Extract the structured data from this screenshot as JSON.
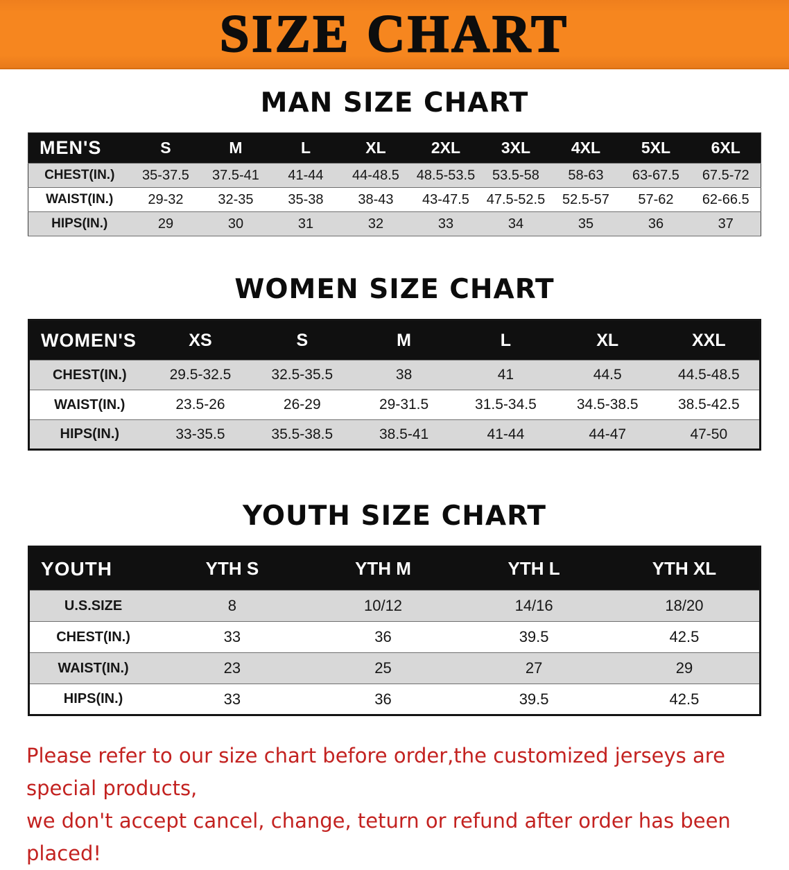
{
  "banner": {
    "title": "SIZE CHART"
  },
  "colors": {
    "banner_bg": "#f6861f",
    "table_header_bg": "#101010",
    "row_alt_bg": "#d8d8d8",
    "disclaimer_red": "#c32220"
  },
  "sections": [
    {
      "id": "men",
      "heading": "MAN SIZE CHART",
      "table": {
        "header": [
          "MEN'S",
          "S",
          "M",
          "L",
          "XL",
          "2XL",
          "3XL",
          "4XL",
          "5XL",
          "6XL"
        ],
        "rows": [
          [
            "CHEST(IN.)",
            "35-37.5",
            "37.5-41",
            "41-44",
            "44-48.5",
            "48.5-53.5",
            "53.5-58",
            "58-63",
            "63-67.5",
            "67.5-72"
          ],
          [
            "WAIST(IN.)",
            "29-32",
            "32-35",
            "35-38",
            "38-43",
            "43-47.5",
            "47.5-52.5",
            "52.5-57",
            "57-62",
            "62-66.5"
          ],
          [
            "HIPS(IN.)",
            "29",
            "30",
            "31",
            "32",
            "33",
            "34",
            "35",
            "36",
            "37"
          ]
        ]
      }
    },
    {
      "id": "women",
      "heading": "WOMEN SIZE CHART",
      "table": {
        "header": [
          "WOMEN'S",
          "XS",
          "S",
          "M",
          "L",
          "XL",
          "XXL"
        ],
        "rows": [
          [
            "CHEST(IN.)",
            "29.5-32.5",
            "32.5-35.5",
            "38",
            "41",
            "44.5",
            "44.5-48.5"
          ],
          [
            "WAIST(IN.)",
            "23.5-26",
            "26-29",
            "29-31.5",
            "31.5-34.5",
            "34.5-38.5",
            "38.5-42.5"
          ],
          [
            "HIPS(IN.)",
            "33-35.5",
            "35.5-38.5",
            "38.5-41",
            "41-44",
            "44-47",
            "47-50"
          ]
        ]
      }
    },
    {
      "id": "youth",
      "heading": "YOUTH SIZE CHART",
      "table": {
        "header": [
          "YOUTH",
          "YTH S",
          "YTH M",
          "YTH L",
          "YTH XL"
        ],
        "rows": [
          [
            "U.S.SIZE",
            "8",
            "10/12",
            "14/16",
            "18/20"
          ],
          [
            "CHEST(IN.)",
            "33",
            "36",
            "39.5",
            "42.5"
          ],
          [
            "WAIST(IN.)",
            "23",
            "25",
            "27",
            "29"
          ],
          [
            "HIPS(IN.)",
            "33",
            "36",
            "39.5",
            "42.5"
          ]
        ]
      }
    }
  ],
  "disclaimer": {
    "line1": "Please refer to our size chart before order,the customized jerseys are special products,",
    "line2": "we don't accept cancel, change, teturn or refund after order has been placed!"
  }
}
